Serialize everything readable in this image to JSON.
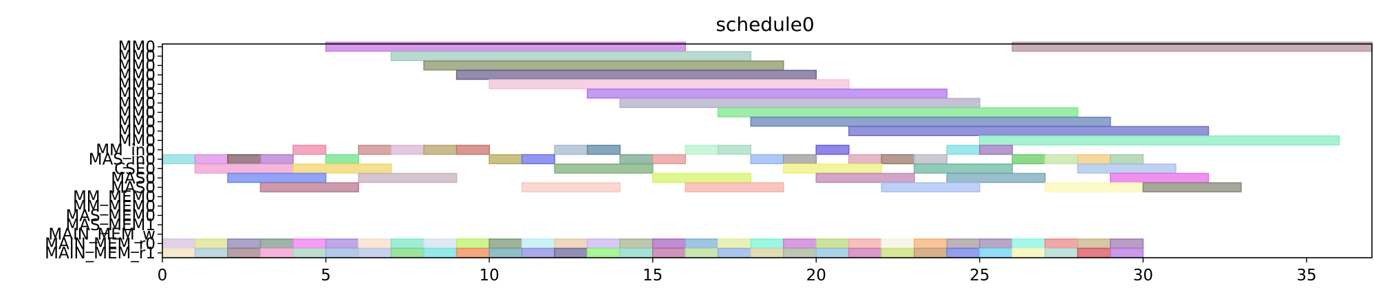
{
  "chart_data": {
    "type": "gantt",
    "title": "schedule0",
    "xlabel": "",
    "ylabel": "",
    "xlim": [
      0,
      37
    ],
    "x_ticks": [
      0,
      5,
      10,
      15,
      20,
      25,
      30,
      35
    ],
    "grid": false,
    "legend": "none",
    "rows": [
      {
        "label": "MM0",
        "bars": [
          [
            5,
            16,
            "#c77ae0"
          ],
          [
            26,
            37,
            "#b695a3"
          ]
        ]
      },
      {
        "label": "MM0",
        "bars": [
          [
            7,
            18,
            "#a3ccc0"
          ]
        ]
      },
      {
        "label": "MM0",
        "bars": [
          [
            8,
            19,
            "#8a956a"
          ]
        ]
      },
      {
        "label": "MM0",
        "bars": [
          [
            9,
            20,
            "#6f6590"
          ]
        ]
      },
      {
        "label": "MM0",
        "bars": [
          [
            10,
            21,
            "#f3c1d8"
          ]
        ]
      },
      {
        "label": "MM0",
        "bars": [
          [
            13,
            24,
            "#b377f0"
          ]
        ]
      },
      {
        "label": "MM0",
        "bars": [
          [
            14,
            25,
            "#b2aec7"
          ]
        ]
      },
      {
        "label": "MM0",
        "bars": [
          [
            17,
            28,
            "#7fe68e"
          ]
        ]
      },
      {
        "label": "MM0",
        "bars": [
          [
            18,
            29,
            "#6a86b8"
          ]
        ]
      },
      {
        "label": "MM0",
        "bars": [
          [
            21,
            32,
            "#6d71cf"
          ]
        ]
      },
      {
        "label": "MM0",
        "bars": [
          [
            25,
            36,
            "#8aeec2"
          ]
        ]
      },
      {
        "label": "MM_in0",
        "bars": [
          [
            4,
            5,
            "#ef8aa8"
          ],
          [
            6,
            7,
            "#c98a8a"
          ],
          [
            7,
            8,
            "#dbb6d6"
          ],
          [
            8,
            9,
            "#b7a36c"
          ],
          [
            9,
            10,
            "#c9776d"
          ],
          [
            12,
            13,
            "#a6b9d0"
          ],
          [
            13,
            14,
            "#5e8aa5"
          ],
          [
            16,
            17,
            "#b7f2cd"
          ],
          [
            17,
            18,
            "#a7dcc2"
          ],
          [
            20,
            21,
            "#6b5fe0"
          ],
          [
            24,
            25,
            "#7fdfe3"
          ],
          [
            25,
            26,
            "#9e78bf"
          ]
        ]
      },
      {
        "label": "MAS_in0",
        "bars": [
          [
            0,
            1,
            "#8adcdf"
          ],
          [
            1,
            2,
            "#d98fe6"
          ],
          [
            2,
            3,
            "#7c5a66"
          ],
          [
            3,
            4,
            "#b679cf"
          ],
          [
            5,
            6,
            "#6fe38a"
          ],
          [
            10,
            11,
            "#b6ad5c"
          ],
          [
            11,
            12,
            "#6c74e8"
          ],
          [
            14,
            15,
            "#79a890"
          ],
          [
            15,
            16,
            "#e39a98"
          ],
          [
            18,
            19,
            "#93b6f4"
          ],
          [
            19,
            20,
            "#9a9a9a"
          ],
          [
            21,
            22,
            "#d9a2b3"
          ],
          [
            22,
            23,
            "#9c7a6a"
          ],
          [
            23,
            24,
            "#b9b7c3"
          ],
          [
            26,
            27,
            "#6ccb6a"
          ],
          [
            27,
            28,
            "#c4e3a8"
          ],
          [
            28,
            29,
            "#efcc7d"
          ],
          [
            29,
            30,
            "#a3cda8"
          ]
        ]
      },
      {
        "label": "CSE0",
        "bars": [
          [
            1,
            4,
            "#ef9fcf"
          ],
          [
            4,
            7,
            "#f2d66c"
          ],
          [
            12,
            15,
            "#7fb07a"
          ],
          [
            19,
            22,
            "#eef07d"
          ],
          [
            23,
            26,
            "#6fb9a3"
          ],
          [
            28,
            31,
            "#a8c3e8"
          ]
        ]
      },
      {
        "label": "MAS0",
        "bars": [
          [
            2,
            5,
            "#6d86f2"
          ],
          [
            6,
            9,
            "#c8b2bd"
          ],
          [
            15,
            18,
            "#d5f46a"
          ],
          [
            20,
            23,
            "#c188b4"
          ],
          [
            24,
            27,
            "#7aa8bc"
          ],
          [
            29,
            32,
            "#ea6ee7"
          ]
        ]
      },
      {
        "label": "MAS0",
        "bars": [
          [
            3,
            6,
            "#b97a92"
          ],
          [
            11,
            14,
            "#f8c9c2"
          ],
          [
            16,
            19,
            "#f6b3a9"
          ],
          [
            22,
            25,
            "#a9c0f4"
          ],
          [
            27,
            30,
            "#fcf7b8"
          ],
          [
            30,
            33,
            "#8a8a7c"
          ]
        ]
      },
      {
        "label": "MM_MEM0",
        "bars": []
      },
      {
        "label": "MM_MEM0",
        "bars": []
      },
      {
        "label": "MAS_MEM0",
        "bars": []
      },
      {
        "label": "MAS_MEM1",
        "bars": []
      },
      {
        "label": "MAIN_MEM_w",
        "bars": []
      },
      {
        "label": "MAIN_MEM_r0",
        "bars": [
          [
            0,
            1,
            "#d8c2de"
          ],
          [
            1,
            2,
            "#dfe08f"
          ],
          [
            2,
            3,
            "#8e86b8"
          ],
          [
            3,
            4,
            "#7f9a8a"
          ],
          [
            4,
            5,
            "#f07ef0"
          ],
          [
            5,
            6,
            "#a989e0"
          ],
          [
            6,
            7,
            "#f8dcc8"
          ],
          [
            7,
            8,
            "#7fe6c9"
          ],
          [
            8,
            9,
            "#d3e1ef"
          ],
          [
            9,
            10,
            "#bcf06a"
          ],
          [
            10,
            11,
            "#7d9a75"
          ],
          [
            11,
            12,
            "#b8eef0"
          ],
          [
            12,
            13,
            "#eac8a9"
          ],
          [
            13,
            14,
            "#cbb6f2"
          ],
          [
            14,
            15,
            "#a6b68c"
          ],
          [
            15,
            16,
            "#a86ac4"
          ],
          [
            16,
            17,
            "#7fb2dc"
          ],
          [
            17,
            18,
            "#e3ec9f"
          ],
          [
            18,
            19,
            "#79f3d8"
          ],
          [
            19,
            20,
            "#c97bd8"
          ],
          [
            20,
            21,
            "#bad97c"
          ],
          [
            21,
            22,
            "#f4a9a9"
          ],
          [
            22,
            23,
            "#f6f3e0"
          ],
          [
            23,
            24,
            "#f6b27a"
          ],
          [
            24,
            25,
            "#a69c9f"
          ],
          [
            25,
            26,
            "#9f88b4"
          ],
          [
            26,
            27,
            "#88f6e0"
          ],
          [
            27,
            28,
            "#ec8a8a"
          ],
          [
            28,
            29,
            "#c8b587"
          ],
          [
            29,
            30,
            "#a27cb2"
          ]
        ]
      },
      {
        "label": "MAIN_MEM_r1",
        "bars": [
          [
            0,
            1,
            "#f3e0c2"
          ],
          [
            1,
            2,
            "#a9c9d3"
          ],
          [
            2,
            3,
            "#a0808a"
          ],
          [
            3,
            4,
            "#f29bd3"
          ],
          [
            4,
            5,
            "#a9d2c0"
          ],
          [
            5,
            6,
            "#9fb6e0"
          ],
          [
            6,
            7,
            "#b6c4e6"
          ],
          [
            7,
            8,
            "#7fd77f"
          ],
          [
            8,
            9,
            "#74e2e0"
          ],
          [
            9,
            10,
            "#f08a5a"
          ],
          [
            10,
            11,
            "#6fa8b3"
          ],
          [
            11,
            12,
            "#8c8ee0"
          ],
          [
            12,
            13,
            "#6c6a98"
          ],
          [
            13,
            14,
            "#8ef07a"
          ],
          [
            14,
            15,
            "#8ad9c6"
          ],
          [
            15,
            16,
            "#c071a6"
          ],
          [
            16,
            17,
            "#b8dd9a"
          ],
          [
            17,
            18,
            "#8fb1e6"
          ],
          [
            18,
            19,
            "#d9d0a2"
          ],
          [
            19,
            20,
            "#a9b39c"
          ],
          [
            20,
            21,
            "#8fc1dd"
          ],
          [
            21,
            22,
            "#cb79b8"
          ],
          [
            22,
            23,
            "#c9e07a"
          ],
          [
            23,
            24,
            "#c89a6a"
          ],
          [
            24,
            25,
            "#6f7ee6"
          ],
          [
            25,
            26,
            "#6fd2f3"
          ],
          [
            26,
            27,
            "#f2f4b0"
          ],
          [
            27,
            28,
            "#a9d9cf"
          ],
          [
            28,
            29,
            "#d9535d"
          ],
          [
            29,
            30,
            "#b77ae0"
          ]
        ]
      }
    ]
  }
}
